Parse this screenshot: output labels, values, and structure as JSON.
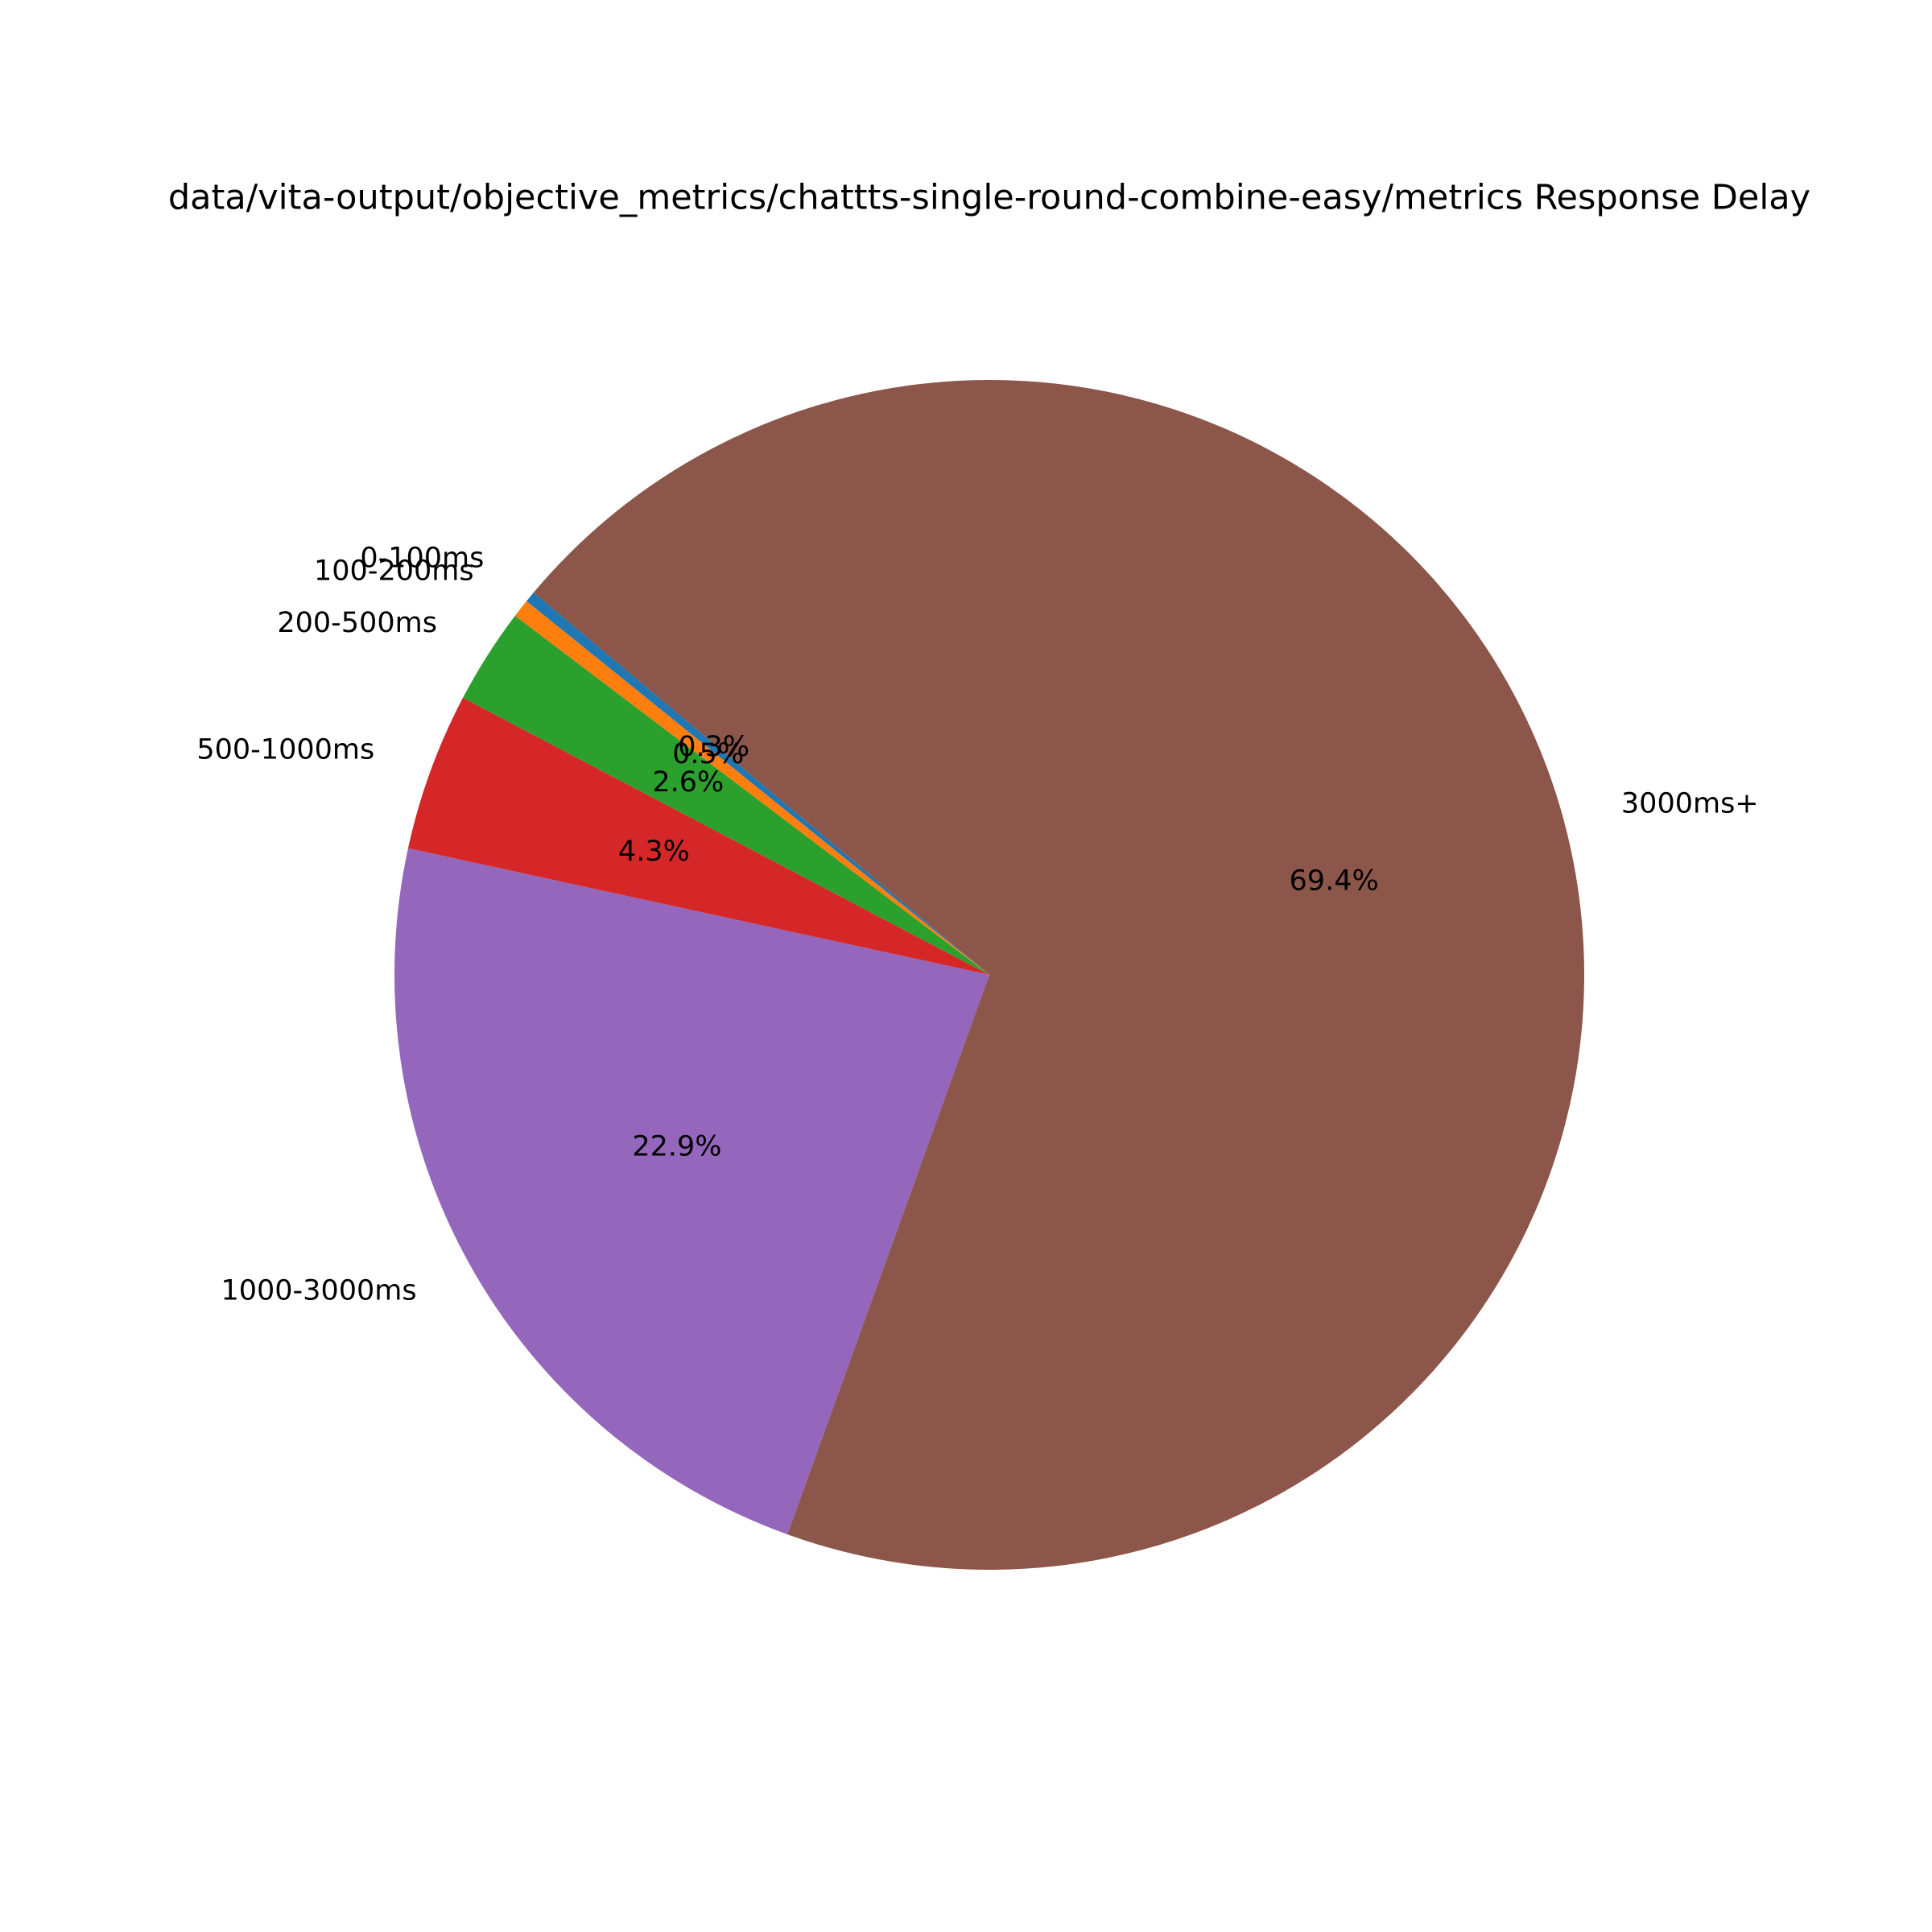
{
  "chart_data": {
    "type": "pie",
    "title": "data/vita-output/objective_metrics/chattts-single-round-combine-easy/metrics Response Delay",
    "categories": [
      "0-100ms",
      "100-200ms",
      "200-500ms",
      "500-1000ms",
      "1000-3000ms",
      "3000ms+"
    ],
    "values": [
      0.3,
      0.5,
      2.6,
      4.3,
      22.9,
      69.4
    ],
    "value_labels": [
      "0.3%",
      "0.5%",
      "2.6%",
      "4.3%",
      "22.9%",
      "69.4%"
    ],
    "colors": [
      "#1f77b4",
      "#ff7f0e",
      "#2ca02c",
      "#d62728",
      "#9467bd",
      "#8c564b"
    ],
    "start_angle": 140
  }
}
